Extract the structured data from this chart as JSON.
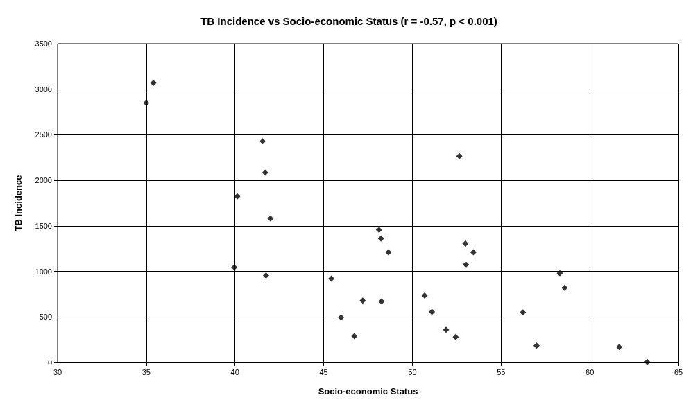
{
  "chart_data": {
    "type": "scatter",
    "title": "TB Incidence vs Socio-economic Status (r = -0.57, p < 0.001)",
    "xlabel": "Socio-economic Status",
    "ylabel": "TB Incidence",
    "x": [
      35.0,
      35.4,
      41.56,
      41.7,
      40.13,
      42.0,
      39.96,
      41.75,
      45.43,
      45.98,
      46.73,
      47.2,
      48.12,
      48.23,
      48.65,
      48.26,
      52.65,
      52.99,
      53.44,
      53.02,
      50.69,
      51.1,
      51.9,
      52.44,
      56.23,
      57.0,
      58.31,
      58.58,
      61.66,
      63.24
    ],
    "values": [
      2850,
      3070,
      2430,
      2085,
      1825,
      1580,
      1045,
      955,
      920,
      495,
      290,
      680,
      1455,
      1360,
      1210,
      670,
      2265,
      1305,
      1210,
      1075,
      735,
      555,
      360,
      280,
      550,
      185,
      980,
      820,
      170,
      5
    ],
    "color": "#000000",
    "marker": "diamond",
    "grid": true,
    "xlim": [
      30,
      65
    ],
    "xticks": [
      30,
      35,
      40,
      45,
      50,
      55,
      60,
      65
    ],
    "ylim": [
      0,
      3500
    ],
    "yticks": [
      0,
      500,
      1000,
      1500,
      2000,
      2500,
      3000,
      3500
    ]
  }
}
